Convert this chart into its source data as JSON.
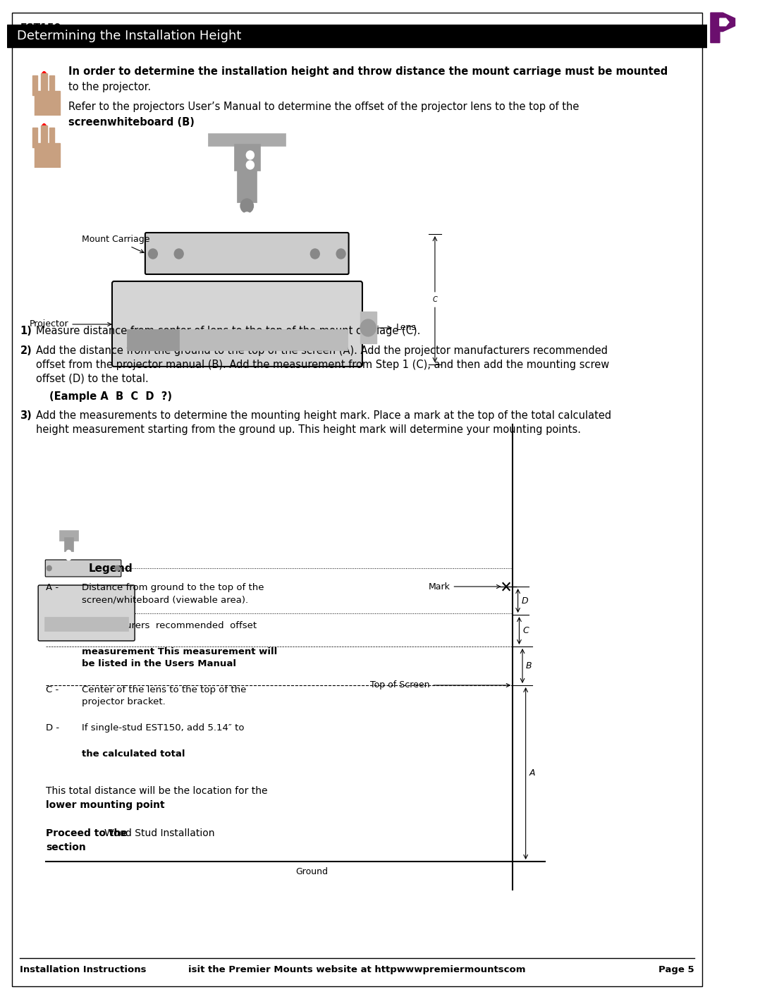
{
  "page_title": "EST150",
  "section_title": "Determining the Installation Height",
  "logo_color": "#6B0F6E",
  "header_bg": "#000000",
  "header_text_color": "#ffffff",
  "body_bg": "#ffffff",
  "text_color": "#000000",
  "footer_text": "Installation Instructions        isit the Premier Mounts website at httpwwwpremiermountscom                                                       Page 5",
  "note1_bold": "In order to determine the installation height and throw distance the mount carriage must be mounted",
  "note1_normal": "to the projector.",
  "note2_normal": "Refer to the projectors User’s Manual to determine the offset of the projector lens to the top of the",
  "note2_bold": "screenwhiteboard (B)",
  "step1": "Measure distance from center of lens to the top of the mount carriage (C).",
  "step2": "Add the distance from the ground to the top of the screen (A). Add the projector manufacturers recommended\noffset from the projector manual (B). Add the measurement from Step 1 (C), and then add the mounting screw\noffset (D) to the total.",
  "step2_example": "(Eample A  B  C  D  ?)",
  "step3": "Add the measurements to determine the mounting height mark. Place a mark at the top of the total calculated\nheight measurement starting from the ground up. This height mark will determine your mounting points.",
  "legend_title": "Legend",
  "legend_A": "Distance from ground to the top of the\nscreen/whiteboard (viewable area).",
  "legend_B_normal": "Manufacturers  recommended  offset\n",
  "legend_B_bold": "measurement This measurement will\nbe listed in the Users Manual",
  "legend_C": "Center of the lens to the top of the\nprojector bracket.",
  "legend_D_normal": "If single-stud EST150, add 5.14″ to\n",
  "legend_D_bold": "the calculated total",
  "total_note1": "This total distance will be the location for the",
  "total_note2_bold": "lower mounting point",
  "proceed_normal": "Proceed to the",
  "proceed_bold": "Wood Stud Installation\nsection"
}
